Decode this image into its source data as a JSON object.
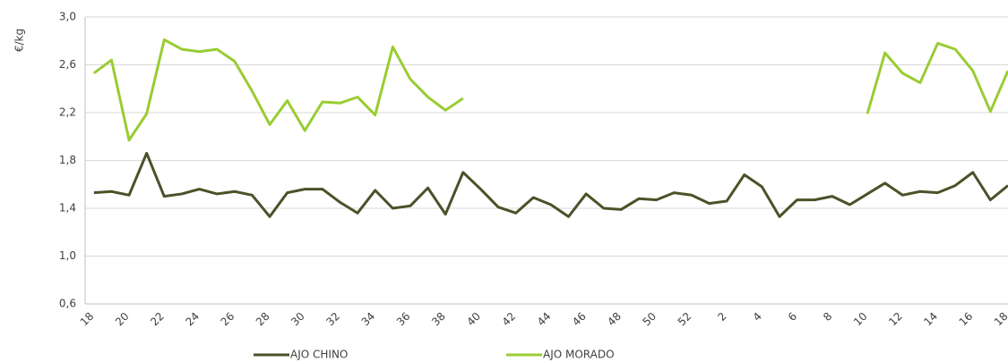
{
  "chart_data": {
    "type": "line",
    "y_label": "€/kg",
    "categories": [
      "18",
      null,
      "20",
      null,
      "22",
      null,
      "24",
      null,
      "26",
      null,
      "28",
      null,
      "30",
      null,
      "32",
      null,
      "34",
      null,
      "36",
      null,
      "38",
      null,
      "40",
      null,
      "42",
      null,
      "44",
      null,
      "46",
      null,
      "48",
      null,
      "50",
      null,
      "52",
      null,
      "2",
      null,
      "4",
      null,
      "6",
      null,
      "8",
      null,
      "10",
      null,
      "12",
      null,
      "14",
      null,
      "16",
      null,
      "18"
    ],
    "series": [
      {
        "name": "AJO CHINO",
        "color": "#4a5228",
        "values": [
          1.53,
          1.54,
          1.51,
          1.86,
          1.5,
          1.52,
          1.56,
          1.52,
          1.54,
          1.51,
          1.33,
          1.53,
          1.56,
          1.56,
          1.45,
          1.36,
          1.55,
          1.4,
          1.42,
          1.57,
          1.35,
          1.7,
          1.56,
          1.41,
          1.36,
          1.49,
          1.43,
          1.33,
          1.52,
          1.4,
          1.39,
          1.48,
          1.47,
          1.53,
          1.51,
          1.44,
          1.46,
          1.68,
          1.58,
          1.33,
          1.47,
          1.47,
          1.5,
          1.43,
          1.52,
          1.61,
          1.51,
          1.54,
          1.53,
          1.59,
          1.7,
          1.47,
          1.59
        ]
      },
      {
        "name": "AJO MORADO",
        "color": "#99cc33",
        "values": [
          2.53,
          2.64,
          1.97,
          2.19,
          2.81,
          2.73,
          2.71,
          2.73,
          2.63,
          2.38,
          2.1,
          2.3,
          2.05,
          2.29,
          2.28,
          2.33,
          2.18,
          2.75,
          2.48,
          2.33,
          2.22,
          2.32,
          null,
          null,
          null,
          null,
          null,
          null,
          null,
          null,
          null,
          null,
          null,
          null,
          null,
          null,
          null,
          null,
          null,
          null,
          null,
          null,
          null,
          null,
          2.19,
          2.7,
          2.53,
          2.45,
          2.78,
          2.73,
          2.55,
          2.21,
          2.55
        ]
      }
    ],
    "ylim": [
      0.6,
      3.0
    ],
    "yticks": [
      {
        "value": 0.6,
        "label": "0,6"
      },
      {
        "value": 1.0,
        "label": "1,0"
      },
      {
        "value": 1.4,
        "label": "1,4"
      },
      {
        "value": 1.8,
        "label": "1,8"
      },
      {
        "value": 2.2,
        "label": "2,2"
      },
      {
        "value": 2.6,
        "label": "2,6"
      },
      {
        "value": 3.0,
        "label": "3,0"
      }
    ],
    "grid": true,
    "legend": "bottom"
  }
}
